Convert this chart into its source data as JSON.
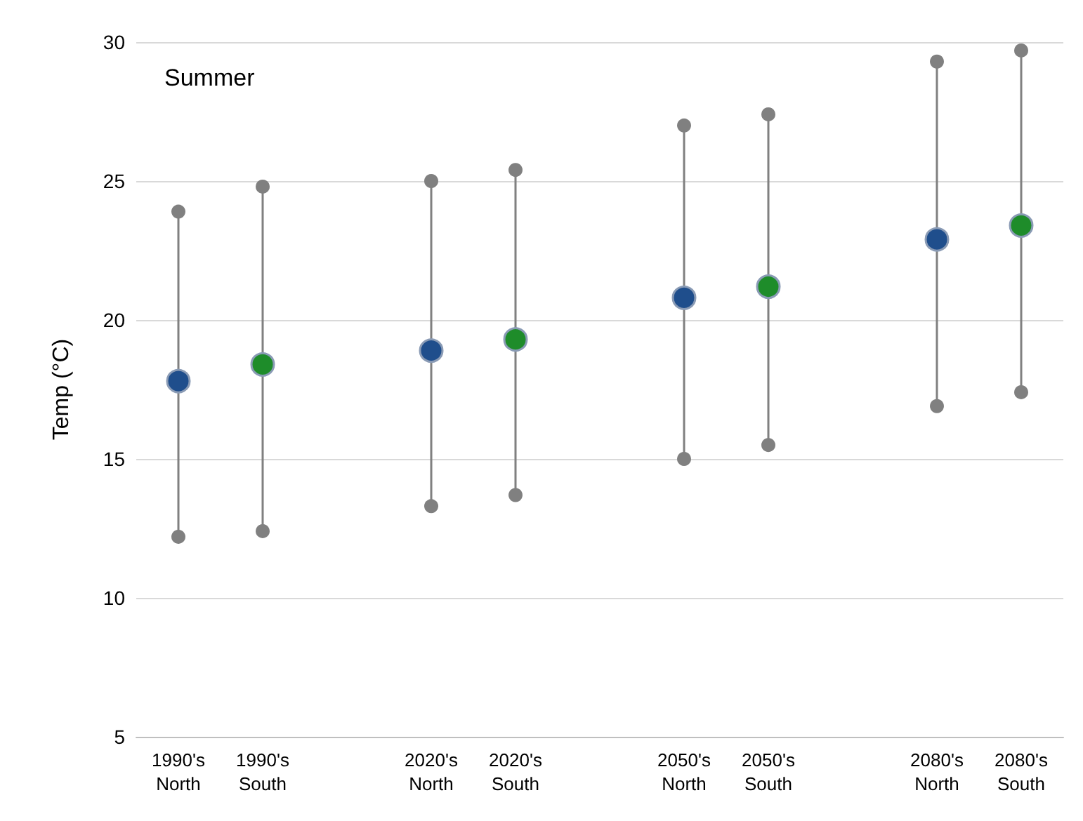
{
  "chart_data": {
    "type": "scatter",
    "title": "Summer",
    "ylabel": "Temp (°C)",
    "categories": [
      "1990's\nNorth",
      "1990's\nSouth",
      null,
      "2020's\nNorth",
      "2020's\nSouth",
      null,
      "2050's\nNorth",
      "2050's\nSouth",
      null,
      "2080's\nNorth",
      "2080's\nSouth"
    ],
    "series": [
      {
        "type": "line",
        "color": "#808080",
        "x": [
          "1990's\nNorth",
          "1990's\nNorth"
        ],
        "values": [
          12.2,
          23.9
        ]
      },
      {
        "type": "line",
        "color": "#808080",
        "x": [
          "1990's\nSouth",
          "1990's\nSouth"
        ],
        "values": [
          12.4,
          24.8
        ]
      },
      {
        "type": "line",
        "color": "#808080",
        "x": [
          "2020's\nNorth",
          "2020's\nNorth"
        ],
        "values": [
          13.3,
          25.0
        ]
      },
      {
        "type": "line",
        "color": "#808080",
        "x": [
          "2020's\nSouth",
          "2020's\nSouth"
        ],
        "values": [
          13.7,
          25.4
        ]
      },
      {
        "type": "line",
        "color": "#808080",
        "x": [
          "2050's\nNorth",
          "2050's\nNorth"
        ],
        "values": [
          15.0,
          27.0
        ]
      },
      {
        "type": "line",
        "color": "#808080",
        "x": [
          "2050's\nSouth",
          "2050's\nSouth"
        ],
        "values": [
          15.5,
          27.4
        ]
      },
      {
        "type": "line",
        "color": "#808080",
        "x": [
          "2080's\nNorth",
          "2080's\nNorth"
        ],
        "values": [
          16.9,
          29.3
        ]
      },
      {
        "type": "line",
        "color": "#808080",
        "x": [
          "2080's\nSouth",
          "2080's\nSouth"
        ],
        "values": [
          17.4,
          29.7
        ]
      },
      {
        "color": "#1f4e8c",
        "values": [
          17.8,
          null,
          null,
          18.9,
          null,
          null,
          20.8,
          null,
          null,
          22.9,
          null
        ]
      },
      {
        "color": "#1e8c2a",
        "values": [
          null,
          18.4,
          null,
          null,
          19.3,
          null,
          null,
          21.2,
          null,
          null,
          23.4
        ]
      }
    ],
    "ylim": [
      5,
      30
    ],
    "yticks": [
      5,
      10,
      15,
      20,
      25,
      30
    ],
    "grid": "y",
    "marker": "circle",
    "line_style": "solid",
    "legend": false
  }
}
